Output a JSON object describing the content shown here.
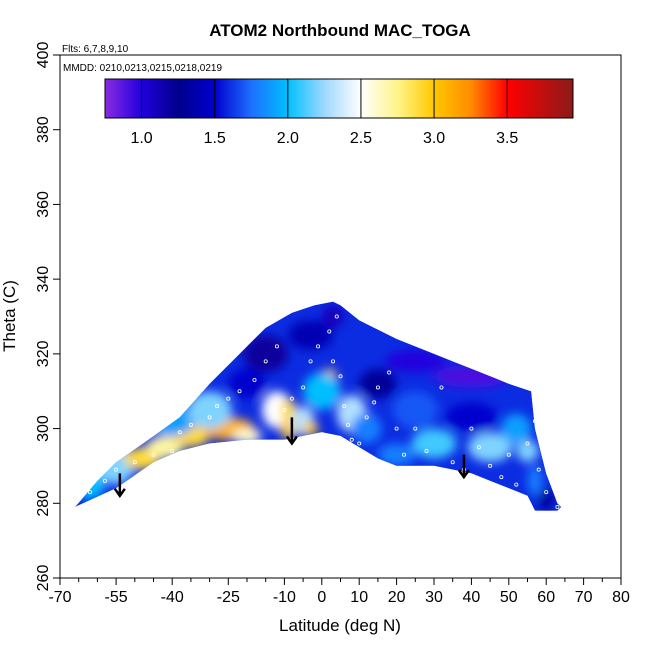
{
  "chart_data": {
    "type": "heatmap",
    "title": "ATOM2 Northbound MAC_TOGA",
    "subtitle_flights": "Flts: 6,7,8,9,10",
    "subtitle_dates": "MMDD: 0210,0213,0215,0218,0219",
    "xlabel": "Latitude (deg N)",
    "ylabel": "Theta (C)",
    "xlim": [
      -70,
      80
    ],
    "ylim": [
      260,
      400
    ],
    "x_major_ticks": [
      -70,
      -55,
      -40,
      -25,
      -10,
      0,
      10,
      20,
      30,
      40,
      50,
      60,
      70,
      80
    ],
    "x_minor_ticks": [
      -65,
      -60,
      -50,
      -45,
      -35,
      -30,
      -20,
      -15,
      -5,
      5,
      15,
      25,
      35,
      45,
      55,
      65,
      75
    ],
    "y_ticks": [
      260,
      280,
      300,
      320,
      340,
      360,
      380,
      400
    ],
    "colorbar": {
      "range": [
        0.75,
        3.95
      ],
      "ticks": [
        "1.0",
        "1.5",
        "2.0",
        "2.5",
        "3.0",
        "3.5"
      ],
      "tick_values": [
        1.0,
        1.5,
        2.0,
        2.5,
        3.0,
        3.5
      ],
      "stops": [
        {
          "v": 0.75,
          "c": "#8a2be2"
        },
        {
          "v": 1.0,
          "c": "#2200dd"
        },
        {
          "v": 1.25,
          "c": "#00008b"
        },
        {
          "v": 1.5,
          "c": "#0000cd"
        },
        {
          "v": 1.75,
          "c": "#1e6fff"
        },
        {
          "v": 2.0,
          "c": "#00bfff"
        },
        {
          "v": 2.25,
          "c": "#9fd8ff"
        },
        {
          "v": 2.5,
          "c": "#ffffff"
        },
        {
          "v": 2.75,
          "c": "#fff48a"
        },
        {
          "v": 3.0,
          "c": "#ffc800"
        },
        {
          "v": 3.25,
          "c": "#ff8c00"
        },
        {
          "v": 3.5,
          "c": "#ff0000"
        },
        {
          "v": 3.95,
          "c": "#8b1a1a"
        }
      ]
    },
    "field_bottom_boundary": [
      [
        -66,
        279
      ],
      [
        -55,
        284
      ],
      [
        -45,
        291
      ],
      [
        -38,
        294
      ],
      [
        -30,
        296
      ],
      [
        -20,
        297
      ],
      [
        -10,
        297
      ],
      [
        0,
        299
      ],
      [
        5,
        298
      ],
      [
        10,
        295
      ],
      [
        15,
        292
      ],
      [
        20,
        290
      ],
      [
        30,
        290
      ],
      [
        40,
        288
      ],
      [
        45,
        286
      ],
      [
        50,
        284
      ],
      [
        55,
        282
      ],
      [
        57,
        278
      ],
      [
        63,
        278
      ],
      [
        64,
        279
      ]
    ],
    "field_top_boundary": [
      [
        -66,
        279
      ],
      [
        -60,
        286
      ],
      [
        -55,
        291
      ],
      [
        -45,
        298
      ],
      [
        -38,
        303
      ],
      [
        -30,
        312
      ],
      [
        -22,
        320
      ],
      [
        -15,
        327
      ],
      [
        -8,
        331
      ],
      [
        -2,
        333
      ],
      [
        3,
        334
      ],
      [
        5,
        333
      ],
      [
        10,
        329
      ],
      [
        20,
        324
      ],
      [
        30,
        320
      ],
      [
        40,
        316
      ],
      [
        50,
        312
      ],
      [
        56,
        310
      ],
      [
        57,
        300
      ],
      [
        60,
        288
      ],
      [
        63,
        280
      ],
      [
        64,
        279
      ]
    ],
    "field_blobs": [
      {
        "lat": -62,
        "theta": 285,
        "value": 2.0,
        "rx": 4,
        "ry": 4
      },
      {
        "lat": -55,
        "theta": 290,
        "value": 2.2,
        "rx": 5,
        "ry": 5
      },
      {
        "lat": -48,
        "theta": 292,
        "value": 2.9,
        "rx": 5,
        "ry": 3
      },
      {
        "lat": -42,
        "theta": 295,
        "value": 2.7,
        "rx": 5,
        "ry": 3
      },
      {
        "lat": -35,
        "theta": 298,
        "value": 2.9,
        "rx": 5,
        "ry": 3
      },
      {
        "lat": -25,
        "theta": 300,
        "value": 3.1,
        "rx": 7,
        "ry": 3
      },
      {
        "lat": -20,
        "theta": 298,
        "value": 2.6,
        "rx": 4,
        "ry": 2
      },
      {
        "lat": -40,
        "theta": 302,
        "value": 1.9,
        "rx": 6,
        "ry": 4
      },
      {
        "lat": -30,
        "theta": 305,
        "value": 2.2,
        "rx": 6,
        "ry": 5
      },
      {
        "lat": -20,
        "theta": 312,
        "value": 1.5,
        "rx": 5,
        "ry": 4
      },
      {
        "lat": -15,
        "theta": 320,
        "value": 1.2,
        "rx": 6,
        "ry": 5
      },
      {
        "lat": -12,
        "theta": 305,
        "value": 2.5,
        "rx": 4,
        "ry": 5
      },
      {
        "lat": -9,
        "theta": 300,
        "value": 3.0,
        "rx": 2,
        "ry": 3
      },
      {
        "lat": -9,
        "theta": 305,
        "value": 2.9,
        "rx": 2,
        "ry": 3
      },
      {
        "lat": -5,
        "theta": 302,
        "value": 2.3,
        "rx": 3,
        "ry": 4
      },
      {
        "lat": -3,
        "theta": 300,
        "value": 3.0,
        "rx": 2,
        "ry": 2
      },
      {
        "lat": 2,
        "theta": 314,
        "value": 3.0,
        "rx": 2,
        "ry": 2
      },
      {
        "lat": 0,
        "theta": 310,
        "value": 2.0,
        "rx": 5,
        "ry": 5
      },
      {
        "lat": -3,
        "theta": 325,
        "value": 1.4,
        "rx": 6,
        "ry": 4
      },
      {
        "lat": 3,
        "theta": 330,
        "value": 1.1,
        "rx": 3,
        "ry": 3
      },
      {
        "lat": 8,
        "theta": 304,
        "value": 2.3,
        "rx": 4,
        "ry": 5
      },
      {
        "lat": 12,
        "theta": 300,
        "value": 1.8,
        "rx": 4,
        "ry": 4
      },
      {
        "lat": 15,
        "theta": 312,
        "value": 1.3,
        "rx": 5,
        "ry": 4
      },
      {
        "lat": 25,
        "theta": 318,
        "value": 1.0,
        "rx": 8,
        "ry": 3
      },
      {
        "lat": 40,
        "theta": 314,
        "value": 0.9,
        "rx": 10,
        "ry": 3
      },
      {
        "lat": 25,
        "theta": 305,
        "value": 1.7,
        "rx": 6,
        "ry": 5
      },
      {
        "lat": 30,
        "theta": 296,
        "value": 2.1,
        "rx": 6,
        "ry": 4
      },
      {
        "lat": 40,
        "theta": 303,
        "value": 1.5,
        "rx": 7,
        "ry": 4
      },
      {
        "lat": 45,
        "theta": 295,
        "value": 2.2,
        "rx": 6,
        "ry": 4
      },
      {
        "lat": 52,
        "theta": 300,
        "value": 1.9,
        "rx": 4,
        "ry": 4
      },
      {
        "lat": 55,
        "theta": 294,
        "value": 2.2,
        "rx": 3,
        "ry": 3
      },
      {
        "lat": 57,
        "theta": 286,
        "value": 1.8,
        "rx": 2,
        "ry": 4
      },
      {
        "lat": 60,
        "theta": 281,
        "value": 1.3,
        "rx": 2,
        "ry": 3
      },
      {
        "lat": 20,
        "theta": 293,
        "value": 1.8,
        "rx": 5,
        "ry": 3
      }
    ],
    "sample_points": [
      [
        -62,
        283
      ],
      [
        -58,
        286
      ],
      [
        -55,
        289
      ],
      [
        -50,
        291
      ],
      [
        -45,
        293
      ],
      [
        -40,
        294
      ],
      [
        -38,
        299
      ],
      [
        -35,
        301
      ],
      [
        -30,
        303
      ],
      [
        -28,
        306
      ],
      [
        -25,
        308
      ],
      [
        -22,
        310
      ],
      [
        -18,
        313
      ],
      [
        -15,
        318
      ],
      [
        -12,
        322
      ],
      [
        -10,
        305
      ],
      [
        -8,
        308
      ],
      [
        -5,
        311
      ],
      [
        -3,
        318
      ],
      [
        -1,
        322
      ],
      [
        2,
        326
      ],
      [
        4,
        330
      ],
      [
        3,
        318
      ],
      [
        5,
        314
      ],
      [
        6,
        306
      ],
      [
        7,
        301
      ],
      [
        8,
        297
      ],
      [
        10,
        296
      ],
      [
        12,
        303
      ],
      [
        14,
        307
      ],
      [
        15,
        311
      ],
      [
        18,
        315
      ],
      [
        20,
        300
      ],
      [
        22,
        293
      ],
      [
        25,
        300
      ],
      [
        28,
        294
      ],
      [
        32,
        311
      ],
      [
        35,
        291
      ],
      [
        38,
        289
      ],
      [
        40,
        300
      ],
      [
        42,
        295
      ],
      [
        45,
        290
      ],
      [
        48,
        287
      ],
      [
        50,
        293
      ],
      [
        52,
        285
      ],
      [
        55,
        296
      ],
      [
        57,
        302
      ],
      [
        58,
        289
      ],
      [
        60,
        283
      ],
      [
        63,
        279
      ]
    ],
    "arrows": [
      {
        "lat": -54,
        "theta_from": 288,
        "theta_to": 282
      },
      {
        "lat": -8,
        "theta_from": 303,
        "theta_to": 296
      },
      {
        "lat": 38,
        "theta_from": 293,
        "theta_to": 287
      }
    ]
  }
}
